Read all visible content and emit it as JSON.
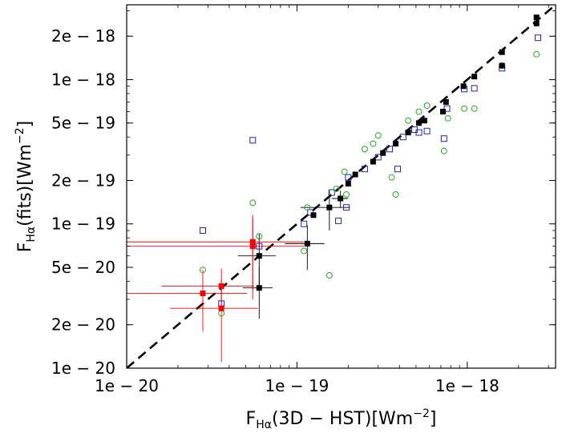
{
  "chart_data": {
    "type": "scatter",
    "xlabel": {
      "main": "F",
      "sub": "Hα",
      "rest": "(3D − HST)[Wm",
      "sup": "−2",
      "end": "]"
    },
    "ylabel": {
      "main": "F",
      "sub": "Hα",
      "rest": "(fits)[Wm",
      "sup": "−2",
      "end": "]"
    },
    "x_scale": "log",
    "y_scale": "log",
    "xlim": [
      1e-20,
      3.3e-18
    ],
    "ylim": [
      1e-20,
      3.3e-18
    ],
    "grid": false,
    "x_ticks": [
      {
        "value": 1e-20,
        "label": "1e − 20"
      },
      {
        "value": 1e-19,
        "label": "1e − 19"
      },
      {
        "value": 1e-18,
        "label": "1e − 18"
      }
    ],
    "y_ticks": [
      {
        "value": 1e-20,
        "label": "1e − 20"
      },
      {
        "value": 2e-20,
        "label": "2e − 20"
      },
      {
        "value": 5e-20,
        "label": "5e − 20"
      },
      {
        "value": 1e-19,
        "label": "1e − 19"
      },
      {
        "value": 2e-19,
        "label": "2e − 19"
      },
      {
        "value": 5e-19,
        "label": "5e − 19"
      },
      {
        "value": 1e-18,
        "label": "1e − 18"
      },
      {
        "value": 2e-18,
        "label": "2e − 18"
      }
    ],
    "reference_line": {
      "style": "dashed",
      "color": "#000000",
      "from": [
        1e-20,
        1e-20
      ],
      "to": [
        3.3e-18,
        3.3e-18
      ]
    },
    "series": [
      {
        "marker": "square-filled",
        "color": "#000000",
        "points": [
          {
            "x": 6e-20,
            "y": 6e-20,
            "xerr": [
              1.5e-20,
              1.5e-20
            ],
            "yerr": [
              2.5e-20,
              2.5e-20
            ]
          },
          {
            "x": 6e-20,
            "y": 3.6e-20,
            "xerr": [
              1.2e-20,
              1.2e-20
            ],
            "yerr": [
              1.4e-20,
              1.4e-20
            ]
          },
          {
            "x": 1.15e-19,
            "y": 7.3e-20,
            "xerr": [
              3e-20,
              3e-20
            ],
            "yerr": [
              2.5e-20,
              2.5e-20
            ]
          },
          {
            "x": 1.55e-19,
            "y": 1.3e-19,
            "xerr": [
              5e-20,
              5e-20
            ],
            "yerr": [
              4e-20,
              4e-20
            ]
          },
          {
            "x": 1.8e-19,
            "y": 1.5e-19,
            "xerr": [
              2e-20,
              2e-20
            ],
            "yerr": [
              2e-20,
              2e-20
            ]
          },
          {
            "x": 1.25e-19,
            "y": 1.15e-19
          },
          {
            "x": 2e-19,
            "y": 1.9e-19
          },
          {
            "x": 2.2e-19,
            "y": 2.2e-19
          },
          {
            "x": 2.8e-19,
            "y": 2.7e-19
          },
          {
            "x": 3.2e-19,
            "y": 3.1e-19
          },
          {
            "x": 3.8e-19,
            "y": 3.6e-19
          },
          {
            "x": 4.5e-19,
            "y": 4.3e-19
          },
          {
            "x": 5.2e-19,
            "y": 5e-19
          },
          {
            "x": 5.6e-19,
            "y": 5.2e-19
          },
          {
            "x": 7.2e-19,
            "y": 6e-19
          },
          {
            "x": 7.5e-19,
            "y": 7e-19
          },
          {
            "x": 9.5e-19,
            "y": 9e-19
          },
          {
            "x": 1.1e-18,
            "y": 1.05e-18
          },
          {
            "x": 1.6e-18,
            "y": 1.25e-18
          },
          {
            "x": 1.6e-18,
            "y": 1.55e-18
          },
          {
            "x": 2.55e-18,
            "y": 2.7e-18
          },
          {
            "x": 2.55e-18,
            "y": 2.45e-18
          }
        ]
      },
      {
        "marker": "square-filled",
        "color": "#ff0000",
        "points": [
          {
            "x": 2.8e-20,
            "y": 3.3e-20,
            "xerr": [
              1.8e-20,
              2.3e-20
            ],
            "yerr": [
              1.5e-20,
              1.5e-20
            ]
          },
          {
            "x": 3.6e-20,
            "y": 3.7e-20,
            "xerr": [
              2e-20,
              2e-20
            ],
            "yerr": [
              1.2e-20,
              1.2e-20
            ]
          },
          {
            "x": 3.6e-20,
            "y": 2.6e-20,
            "xerr": [
              1.8e-20,
              2.3e-20
            ],
            "yerr": [
              1.5e-20,
              1.5e-20
            ]
          },
          {
            "x": 5.5e-20,
            "y": 7.5e-20,
            "xerr": [
              4.5e-20,
              5.5e-20
            ],
            "yerr": [
              4e-20,
              4e-20
            ]
          },
          {
            "x": 5.5e-20,
            "y": 7e-20,
            "xerr": [
              4.5e-20,
              5.5e-20
            ],
            "yerr": [
              4e-20,
              4e-20
            ]
          }
        ]
      },
      {
        "marker": "square-open",
        "color": "#2222bb",
        "points": [
          {
            "x": 2.8e-20,
            "y": 9e-20
          },
          {
            "x": 3.6e-20,
            "y": 2.8e-20
          },
          {
            "x": 5.5e-20,
            "y": 3.8e-19
          },
          {
            "x": 6e-20,
            "y": 7e-20
          },
          {
            "x": 1.1e-19,
            "y": 1e-19
          },
          {
            "x": 1.2e-19,
            "y": 1.2e-19
          },
          {
            "x": 1.6e-19,
            "y": 1.65e-19
          },
          {
            "x": 1.75e-19,
            "y": 1.05e-19
          },
          {
            "x": 1.95e-19,
            "y": 1.3e-19
          },
          {
            "x": 2e-19,
            "y": 2.1e-19
          },
          {
            "x": 2.5e-19,
            "y": 2.4e-19
          },
          {
            "x": 3e-19,
            "y": 2.9e-19
          },
          {
            "x": 3.5e-19,
            "y": 3.3e-19
          },
          {
            "x": 3.9e-19,
            "y": 2.4e-19
          },
          {
            "x": 4.2e-19,
            "y": 4e-19
          },
          {
            "x": 4.9e-19,
            "y": 4.5e-19
          },
          {
            "x": 5.2e-19,
            "y": 4.3e-19
          },
          {
            "x": 5.8e-19,
            "y": 4.4e-19
          },
          {
            "x": 7.3e-19,
            "y": 3.9e-19
          },
          {
            "x": 7.6e-19,
            "y": 6.3e-19
          },
          {
            "x": 9.6e-19,
            "y": 8.6e-19
          },
          {
            "x": 1.1e-18,
            "y": 8.7e-19
          },
          {
            "x": 1.6e-18,
            "y": 1.2e-18
          },
          {
            "x": 2.6e-18,
            "y": 1.95e-18
          }
        ]
      },
      {
        "marker": "circle-open",
        "color": "#22aa22",
        "points": [
          {
            "x": 2.8e-20,
            "y": 4.8e-20
          },
          {
            "x": 3.6e-20,
            "y": 2.4e-20
          },
          {
            "x": 5.5e-20,
            "y": 1.4e-19
          },
          {
            "x": 6e-20,
            "y": 8.2e-20
          },
          {
            "x": 1.1e-19,
            "y": 6.5e-20
          },
          {
            "x": 1.15e-19,
            "y": 1.3e-19
          },
          {
            "x": 1.55e-19,
            "y": 4.4e-20
          },
          {
            "x": 1.7e-19,
            "y": 1.75e-19
          },
          {
            "x": 1.9e-19,
            "y": 2.3e-19
          },
          {
            "x": 1.95e-19,
            "y": 1.6e-19
          },
          {
            "x": 2.5e-19,
            "y": 3.3e-19
          },
          {
            "x": 2.8e-19,
            "y": 3.6e-19
          },
          {
            "x": 3e-19,
            "y": 4.1e-19
          },
          {
            "x": 3.6e-19,
            "y": 2.1e-19
          },
          {
            "x": 3.8e-19,
            "y": 1.6e-19
          },
          {
            "x": 4.5e-19,
            "y": 5.2e-19
          },
          {
            "x": 5.2e-19,
            "y": 6e-19
          },
          {
            "x": 5.8e-19,
            "y": 6.6e-19
          },
          {
            "x": 7.3e-19,
            "y": 3.2e-19
          },
          {
            "x": 7.7e-19,
            "y": 5.4e-19
          },
          {
            "x": 9.6e-19,
            "y": 6.3e-19
          },
          {
            "x": 1.1e-18,
            "y": 6.3e-19
          },
          {
            "x": 1.6e-18,
            "y": 1.25e-18
          },
          {
            "x": 2.55e-18,
            "y": 1.5e-18
          }
        ]
      }
    ]
  }
}
